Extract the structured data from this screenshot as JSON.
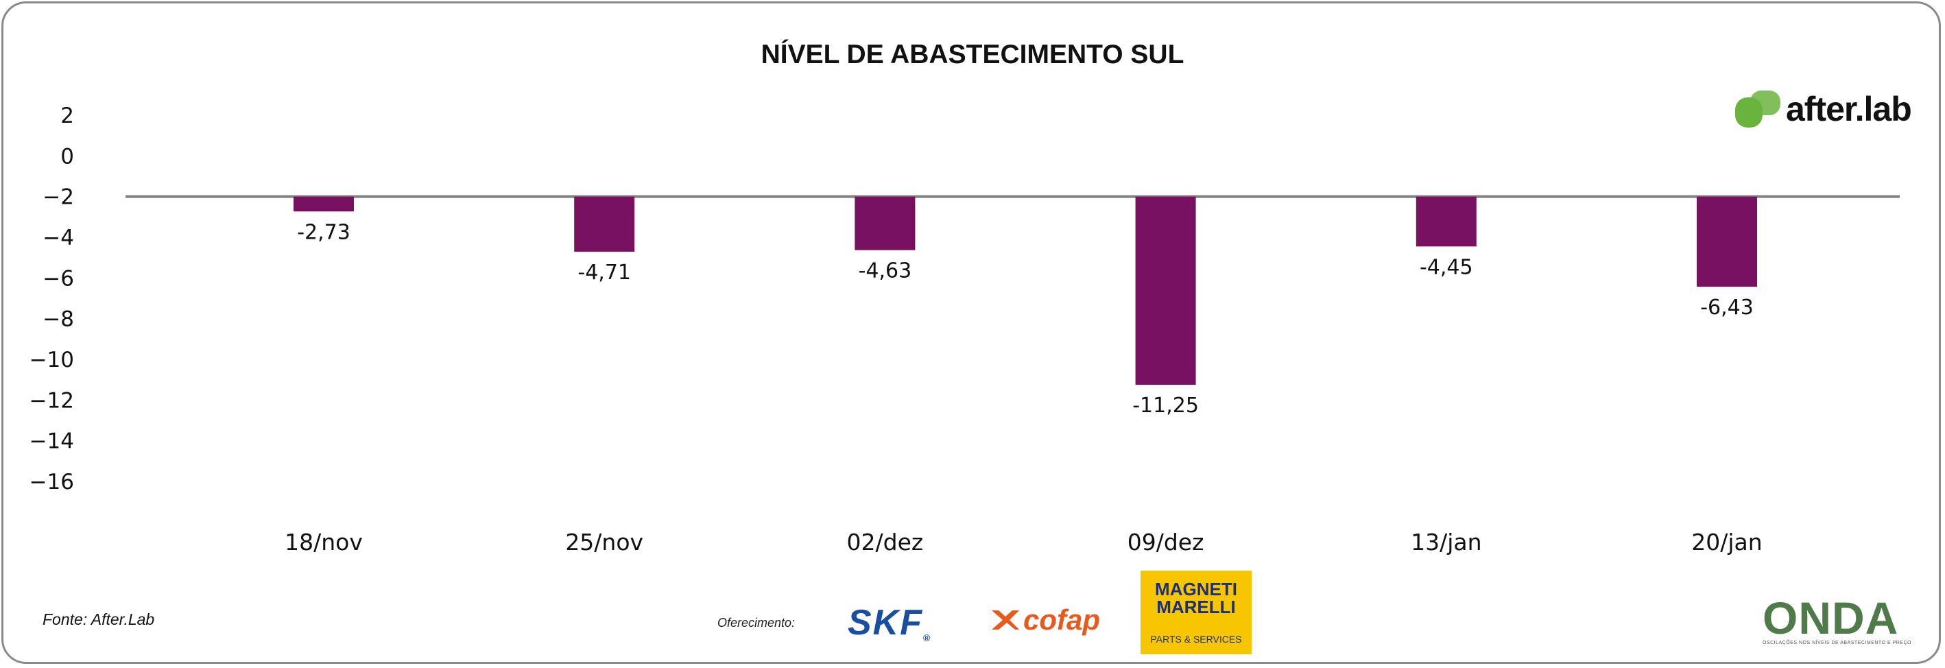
{
  "chart_data": {
    "type": "bar",
    "title": "NÍVEL DE ABASTECIMENTO SUL",
    "categories": [
      "18/nov",
      "25/nov",
      "02/dez",
      "09/dez",
      "13/jan",
      "20/jan"
    ],
    "values": [
      -2.73,
      -4.71,
      -4.63,
      -11.25,
      -4.45,
      -6.43
    ],
    "value_labels": [
      "-2,73",
      "-4,71",
      "-4,63",
      "-11,25",
      "-4,45",
      "-6,43"
    ],
    "baseline": -2,
    "y_ticks": [
      2,
      0,
      -2,
      -4,
      -6,
      -8,
      -10,
      -12,
      -14,
      -16
    ],
    "ylim": [
      -16,
      2
    ],
    "xlabel": "",
    "ylabel": "",
    "bar_color": "#78115f",
    "baseline_color": "#808080"
  },
  "footer": {
    "source": "Fonte: After.Lab",
    "sponsor_label": "Oferecimento:"
  },
  "brands": {
    "afterlab": "after.lab",
    "afterlab_color": "#6ab43e",
    "skf": "SKF",
    "cofap": "cofap",
    "magneti_line1": "MAGNETI",
    "magneti_line2": "MARELLI",
    "magneti_sub": "PARTS & SERVICES",
    "onda": "ONDA",
    "onda_sub": "OSCILAÇÕES NOS NÍVEIS DE ABASTECIMENTO E PREÇO"
  }
}
